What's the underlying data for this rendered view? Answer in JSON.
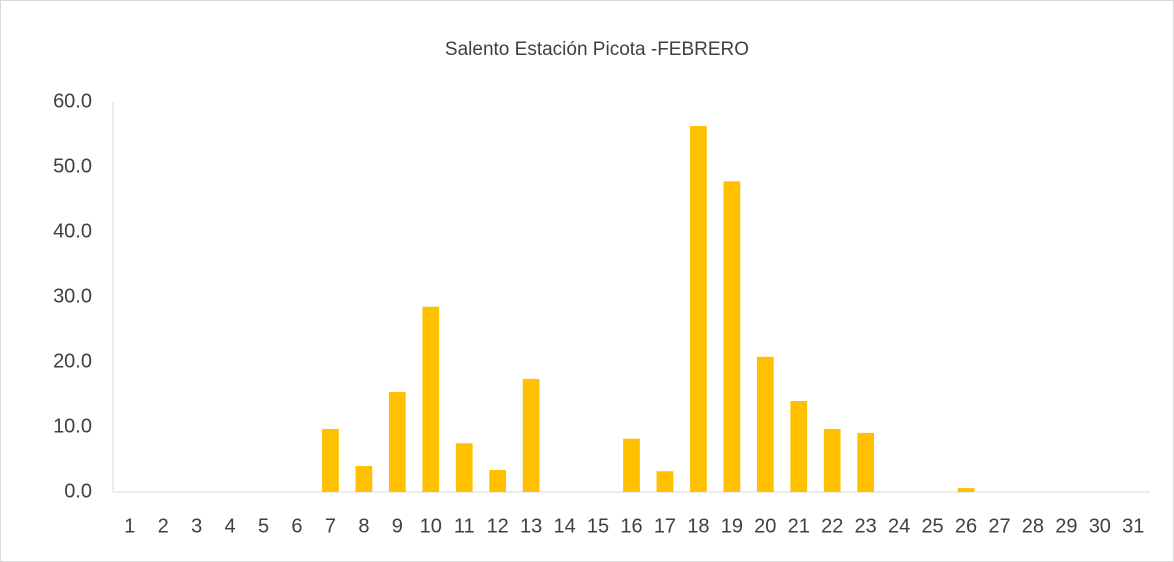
{
  "chart_data": {
    "type": "bar",
    "title": "Salento Estación Picota -FEBRERO",
    "categories": [
      "1",
      "2",
      "3",
      "4",
      "5",
      "6",
      "7",
      "8",
      "9",
      "10",
      "11",
      "12",
      "13",
      "14",
      "15",
      "16",
      "17",
      "18",
      "19",
      "20",
      "21",
      "22",
      "23",
      "24",
      "25",
      "26",
      "27",
      "28",
      "29",
      "30",
      "31"
    ],
    "values": [
      0,
      0,
      0,
      0,
      0,
      0,
      9.7,
      4.0,
      15.4,
      28.5,
      7.5,
      3.4,
      17.4,
      0,
      0,
      8.2,
      3.2,
      56.3,
      47.8,
      20.8,
      14.0,
      9.7,
      9.1,
      0,
      0,
      0.6,
      0,
      0,
      0,
      0,
      0
    ],
    "color": "#ffc000",
    "ylim": [
      0,
      60
    ],
    "yticks": [
      {
        "value": 0,
        "label": "0.0"
      },
      {
        "value": 10,
        "label": "10.0"
      },
      {
        "value": 20,
        "label": "20.0"
      },
      {
        "value": 30,
        "label": "30.0"
      },
      {
        "value": 40,
        "label": "40.0"
      },
      {
        "value": 50,
        "label": "50.0"
      },
      {
        "value": 60,
        "label": "60.0"
      }
    ],
    "grid": false
  }
}
